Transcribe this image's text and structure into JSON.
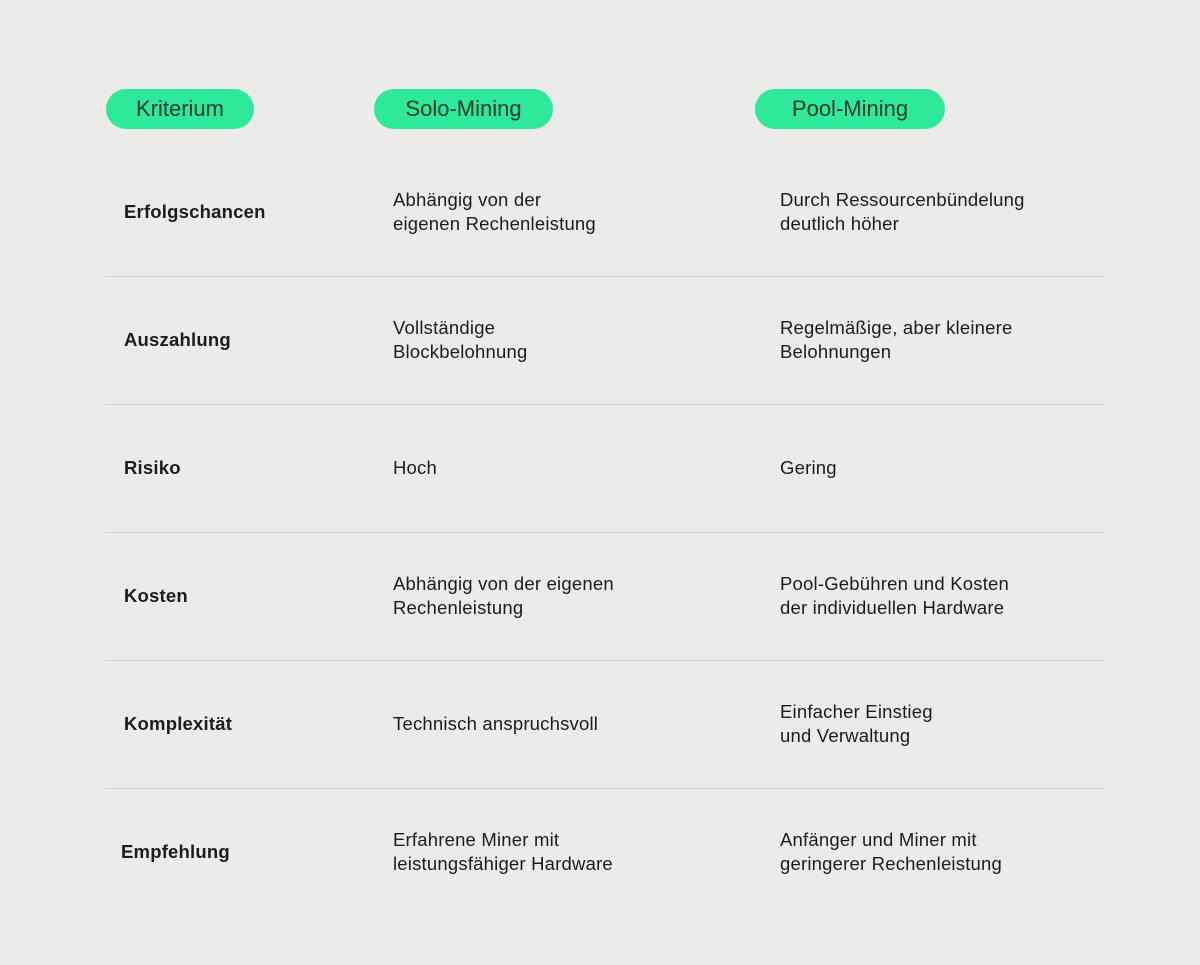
{
  "header": {
    "criterion": "Kriterium",
    "solo": "Solo-Mining",
    "pool": "Pool-Mining"
  },
  "accent_color": "#2ee89c",
  "rows": [
    {
      "criterion": "Erfolgschancen",
      "solo": "Abhängig von der\neigenen Rechenleistung",
      "pool": "Durch Ressourcenbündelung\ndeutlich höher"
    },
    {
      "criterion": "Auszahlung",
      "solo": "Vollständige\nBlockbelohnung",
      "pool": "Regelmäßige, aber kleinere\nBelohnungen"
    },
    {
      "criterion": "Risiko",
      "solo": "Hoch",
      "pool": "Gering"
    },
    {
      "criterion": "Kosten",
      "solo": "Abhängig von der eigenen\nRechenleistung",
      "pool": "Pool-Gebühren und Kosten\nder individuellen Hardware"
    },
    {
      "criterion": "Komplexität",
      "solo": "Technisch anspruchsvoll",
      "pool": "Einfacher Einstieg\nund Verwaltung"
    },
    {
      "criterion": "Empfehlung",
      "solo": "Erfahrene Miner mit\nleistungsfähiger Hardware",
      "pool": "Anfänger und Miner mit\ngeringerer Rechenleistung"
    }
  ]
}
